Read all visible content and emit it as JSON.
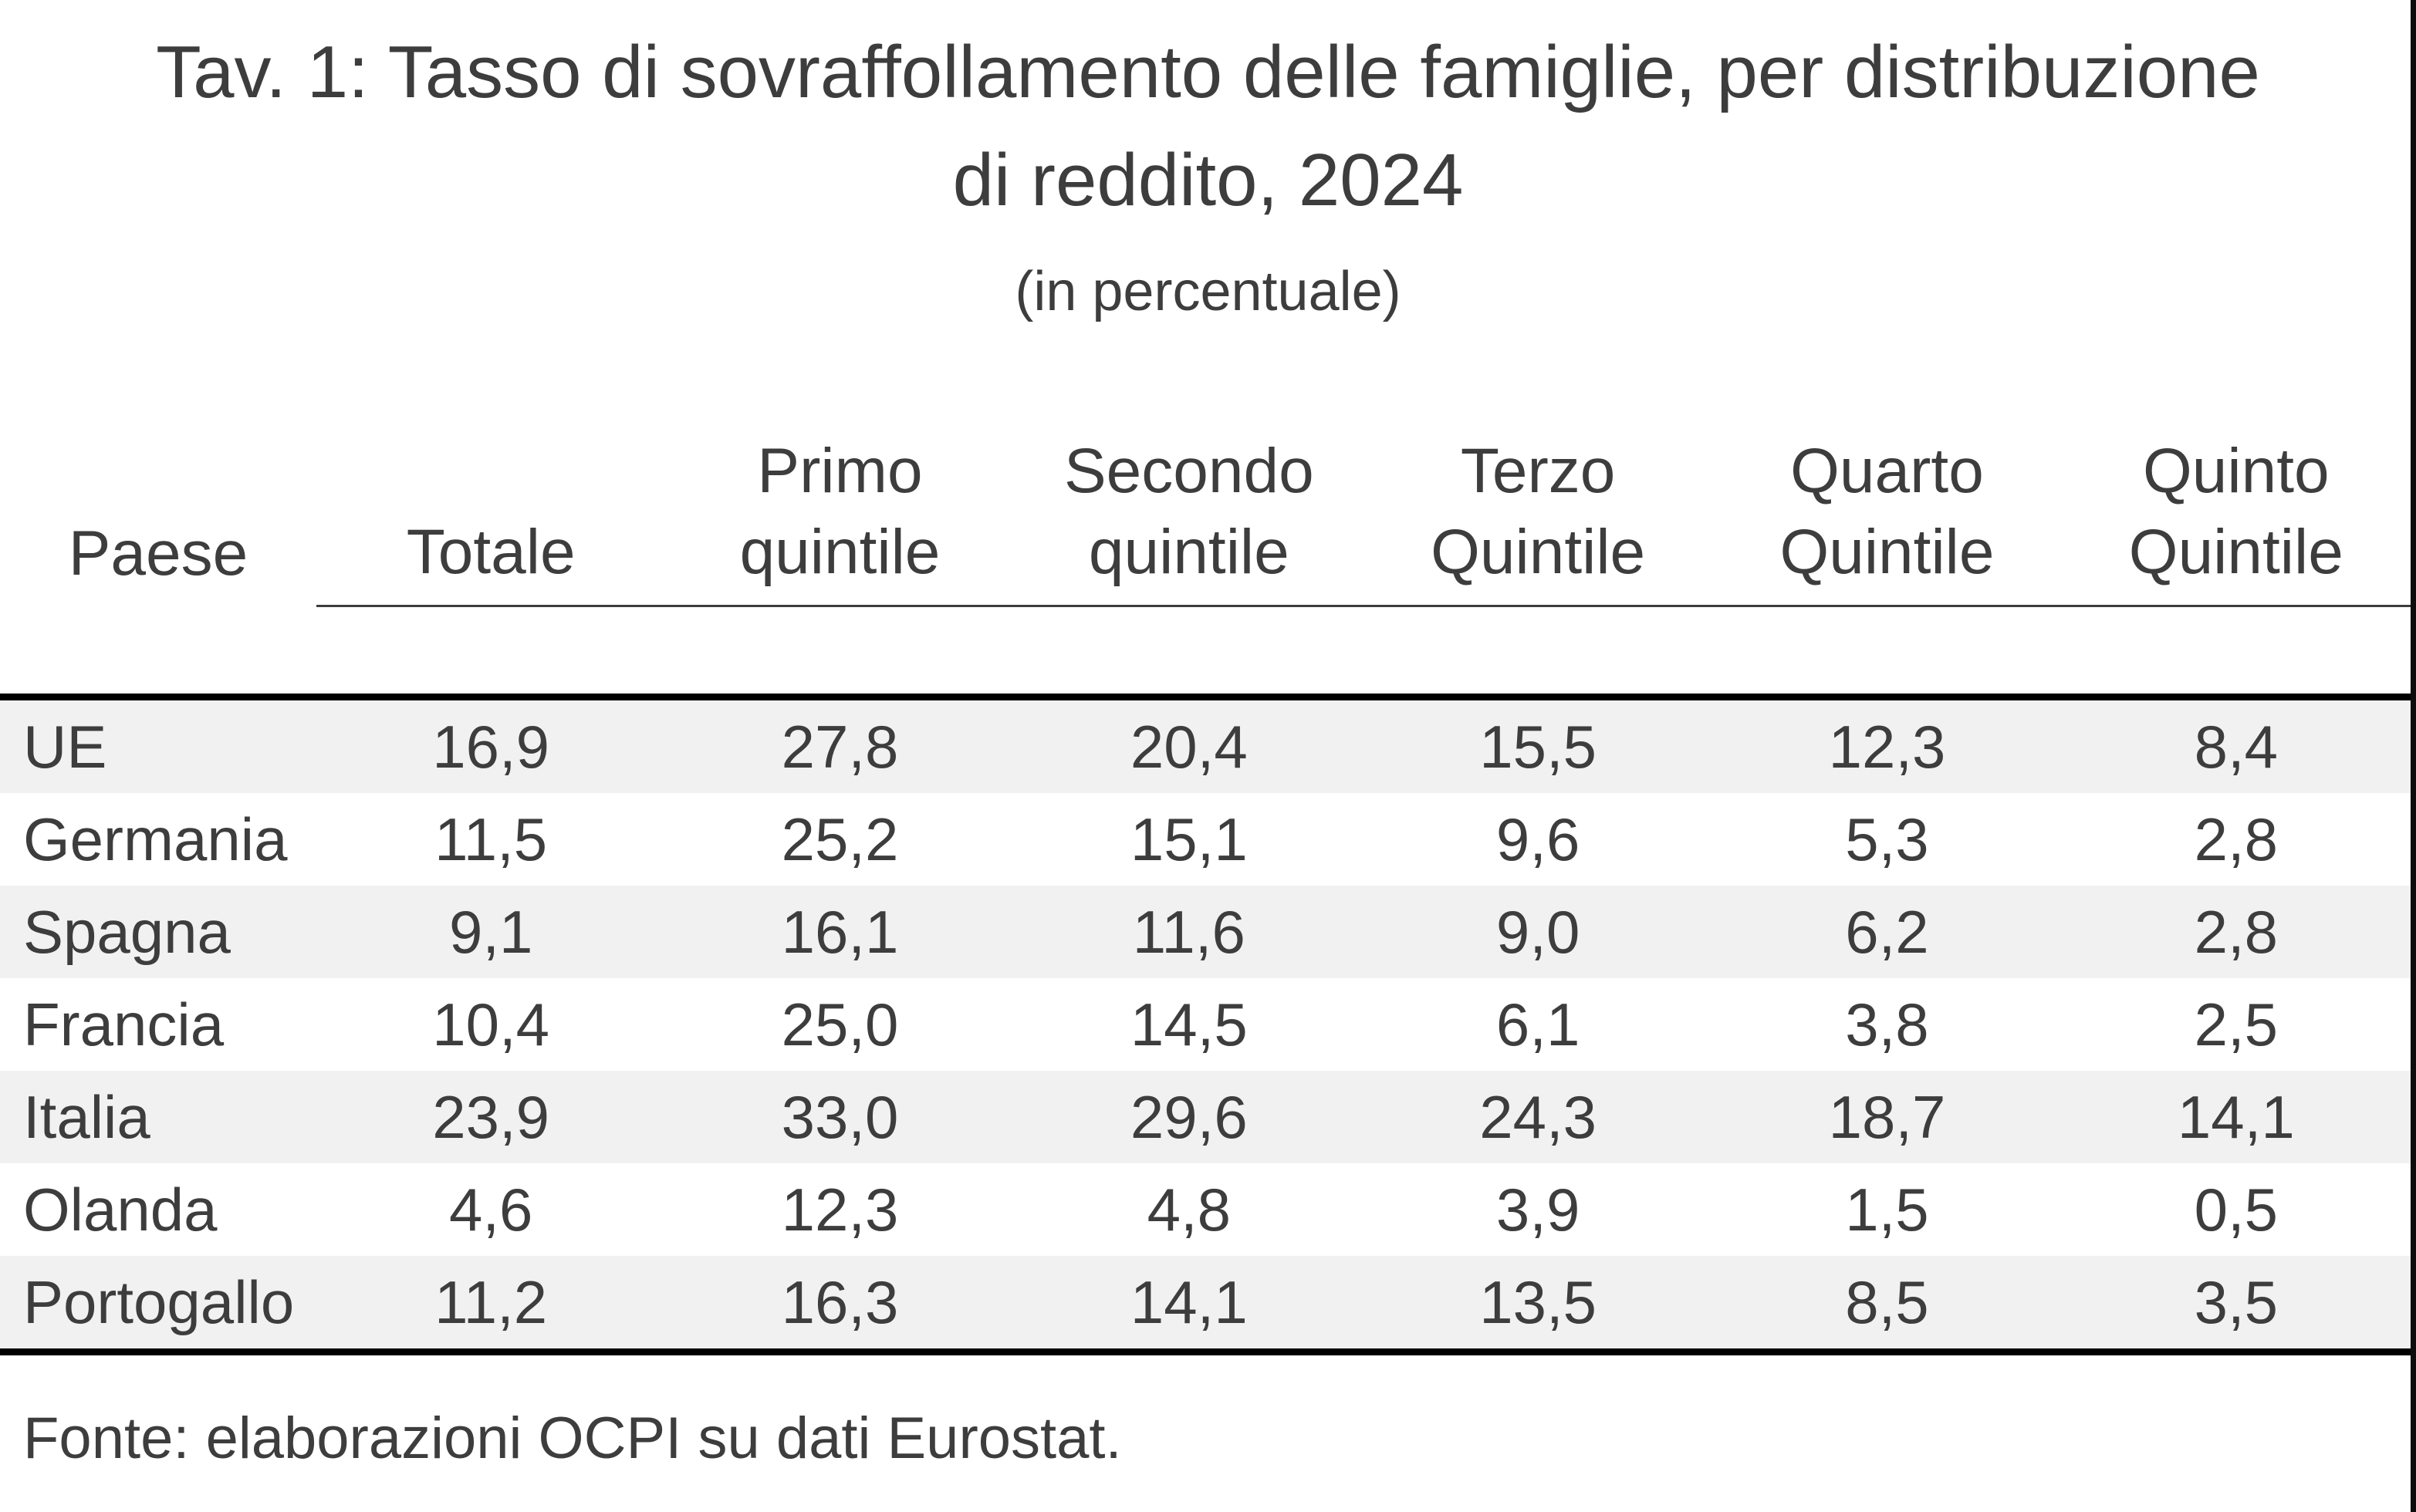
{
  "chart_data": {
    "type": "table",
    "title": "Tav. 1: Tasso di sovraffollamento delle famiglie, per distribuzione di reddito, 2024",
    "title_line1": "Tav. 1: Tasso di sovraffollamento delle famiglie, per distribuzione",
    "title_line2": "di reddito, 2024",
    "subtitle": "(in percentuale)",
    "unit": "percentuale",
    "columns": [
      {
        "label": "Paese",
        "line1": "",
        "line2": "Paese"
      },
      {
        "label": "Totale",
        "line1": "",
        "line2": "Totale"
      },
      {
        "label": "Primo quintile",
        "line1": "Primo",
        "line2": "quintile"
      },
      {
        "label": "Secondo quintile",
        "line1": "Secondo",
        "line2": "quintile"
      },
      {
        "label": "Terzo Quintile",
        "line1": "Terzo",
        "line2": "Quintile"
      },
      {
        "label": "Quarto Quintile",
        "line1": "Quarto",
        "line2": "Quintile"
      },
      {
        "label": "Quinto Quintile",
        "line1": "Quinto",
        "line2": "Quintile"
      }
    ],
    "rows": [
      {
        "country": "UE",
        "values": [
          "16,9",
          "27,8",
          "20,4",
          "15,5",
          "12,3",
          "8,4"
        ],
        "values_num": [
          16.9,
          27.8,
          20.4,
          15.5,
          12.3,
          8.4
        ]
      },
      {
        "country": "Germania",
        "values": [
          "11,5",
          "25,2",
          "15,1",
          "9,6",
          "5,3",
          "2,8"
        ],
        "values_num": [
          11.5,
          25.2,
          15.1,
          9.6,
          5.3,
          2.8
        ]
      },
      {
        "country": "Spagna",
        "values": [
          "9,1",
          "16,1",
          "11,6",
          "9,0",
          "6,2",
          "2,8"
        ],
        "values_num": [
          9.1,
          16.1,
          11.6,
          9.0,
          6.2,
          2.8
        ]
      },
      {
        "country": "Francia",
        "values": [
          "10,4",
          "25,0",
          "14,5",
          "6,1",
          "3,8",
          "2,5"
        ],
        "values_num": [
          10.4,
          25.0,
          14.5,
          6.1,
          3.8,
          2.5
        ]
      },
      {
        "country": "Italia",
        "values": [
          "23,9",
          "33,0",
          "29,6",
          "24,3",
          "18,7",
          "14,1"
        ],
        "values_num": [
          23.9,
          33.0,
          29.6,
          24.3,
          18.7,
          14.1
        ]
      },
      {
        "country": "Olanda",
        "values": [
          "4,6",
          "12,3",
          "4,8",
          "3,9",
          "1,5",
          "0,5"
        ],
        "values_num": [
          4.6,
          12.3,
          4.8,
          3.9,
          1.5,
          0.5
        ]
      },
      {
        "country": "Portogallo",
        "values": [
          "11,2",
          "16,3",
          "14,1",
          "13,5",
          "8,5",
          "3,5"
        ],
        "values_num": [
          11.2,
          16.3,
          14.1,
          13.5,
          8.5,
          3.5
        ]
      }
    ],
    "source": "Fonte: elaborazioni OCPI su dati Eurostat.",
    "legend": "none",
    "grid": "zebra-rows"
  },
  "colors": {
    "text": "#3d3d3d",
    "row_stripe": "#f1f1f1",
    "rule_thick": "#000000",
    "rule_thin": "#3d3d3d",
    "background": "#ffffff"
  }
}
